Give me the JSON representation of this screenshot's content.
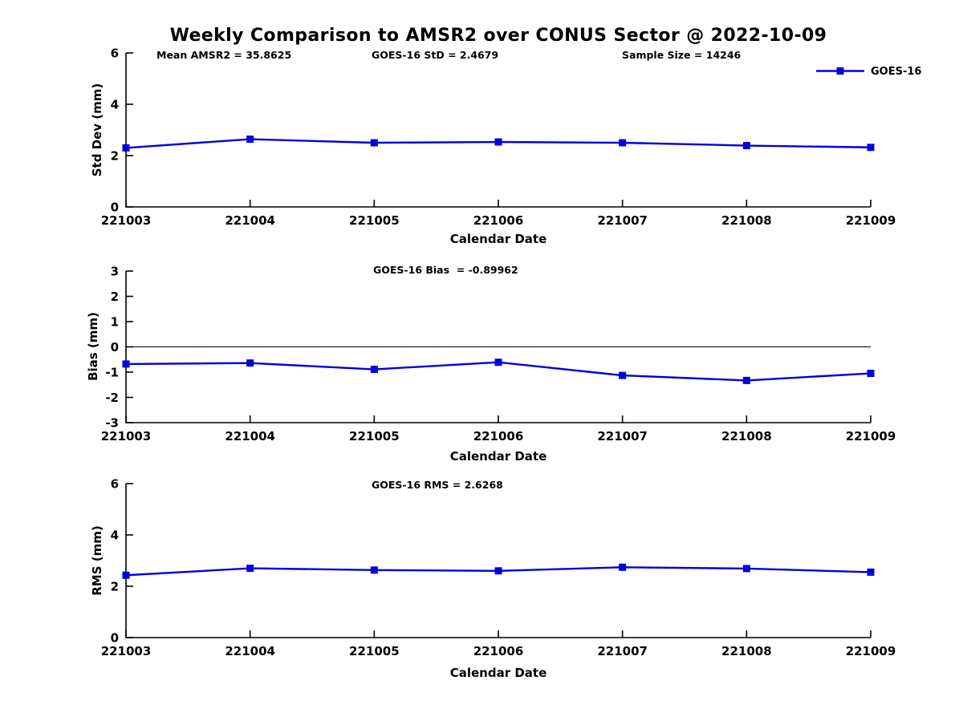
{
  "title": "Weekly Comparison to AMSR2 over CONUS Sector @ 2022-10-09",
  "xlabel": "Calendar Date",
  "legend": {
    "label": "GOES-16"
  },
  "colors": {
    "line": "#0000dd",
    "axis": "#000000",
    "text": "#000000",
    "background": "#ffffff"
  },
  "categories": [
    "221003",
    "221004",
    "221005",
    "221006",
    "221007",
    "221008",
    "221009"
  ],
  "chart_data": [
    {
      "type": "line",
      "name": "std-dev",
      "ylabel": "Std Dev (mm)",
      "ylim": [
        0,
        6
      ],
      "yticks": [
        0,
        2,
        4,
        6
      ],
      "series": [
        {
          "name": "GOES-16",
          "values": [
            2.3,
            2.64,
            2.5,
            2.53,
            2.5,
            2.39,
            2.32
          ]
        }
      ],
      "values": [
        2.3,
        2.64,
        2.5,
        2.53,
        2.5,
        2.39,
        2.32
      ],
      "annotations": [
        {
          "text": "Mean AMSR2 = 35.8625"
        },
        {
          "text": "GOES-16 StD = 2.4679"
        },
        {
          "text": "Sample Size = 14246"
        }
      ],
      "legend_position": "upper right",
      "grid": false
    },
    {
      "type": "line",
      "name": "bias",
      "ylabel": "Bias (mm)",
      "ylim": [
        -3,
        3
      ],
      "yticks": [
        -3,
        -2,
        -1,
        0,
        1,
        2,
        3
      ],
      "zero_line": true,
      "series": [
        {
          "name": "GOES-16",
          "values": [
            -0.68,
            -0.64,
            -0.89,
            -0.61,
            -1.13,
            -1.33,
            -1.05
          ]
        }
      ],
      "values": [
        -0.68,
        -0.64,
        -0.89,
        -0.61,
        -1.13,
        -1.33,
        -1.05
      ],
      "annotations": [
        {
          "text": "GOES-16 Bias  = -0.89962"
        }
      ],
      "grid": false
    },
    {
      "type": "line",
      "name": "rms",
      "ylabel": "RMS (mm)",
      "ylim": [
        0,
        6
      ],
      "yticks": [
        0,
        2,
        4,
        6
      ],
      "series": [
        {
          "name": "GOES-16",
          "values": [
            2.43,
            2.7,
            2.63,
            2.6,
            2.74,
            2.69,
            2.55
          ]
        }
      ],
      "values": [
        2.43,
        2.7,
        2.63,
        2.6,
        2.74,
        2.69,
        2.55
      ],
      "annotations": [
        {
          "text": "GOES-16 RMS = 2.6268"
        }
      ],
      "grid": false
    }
  ]
}
